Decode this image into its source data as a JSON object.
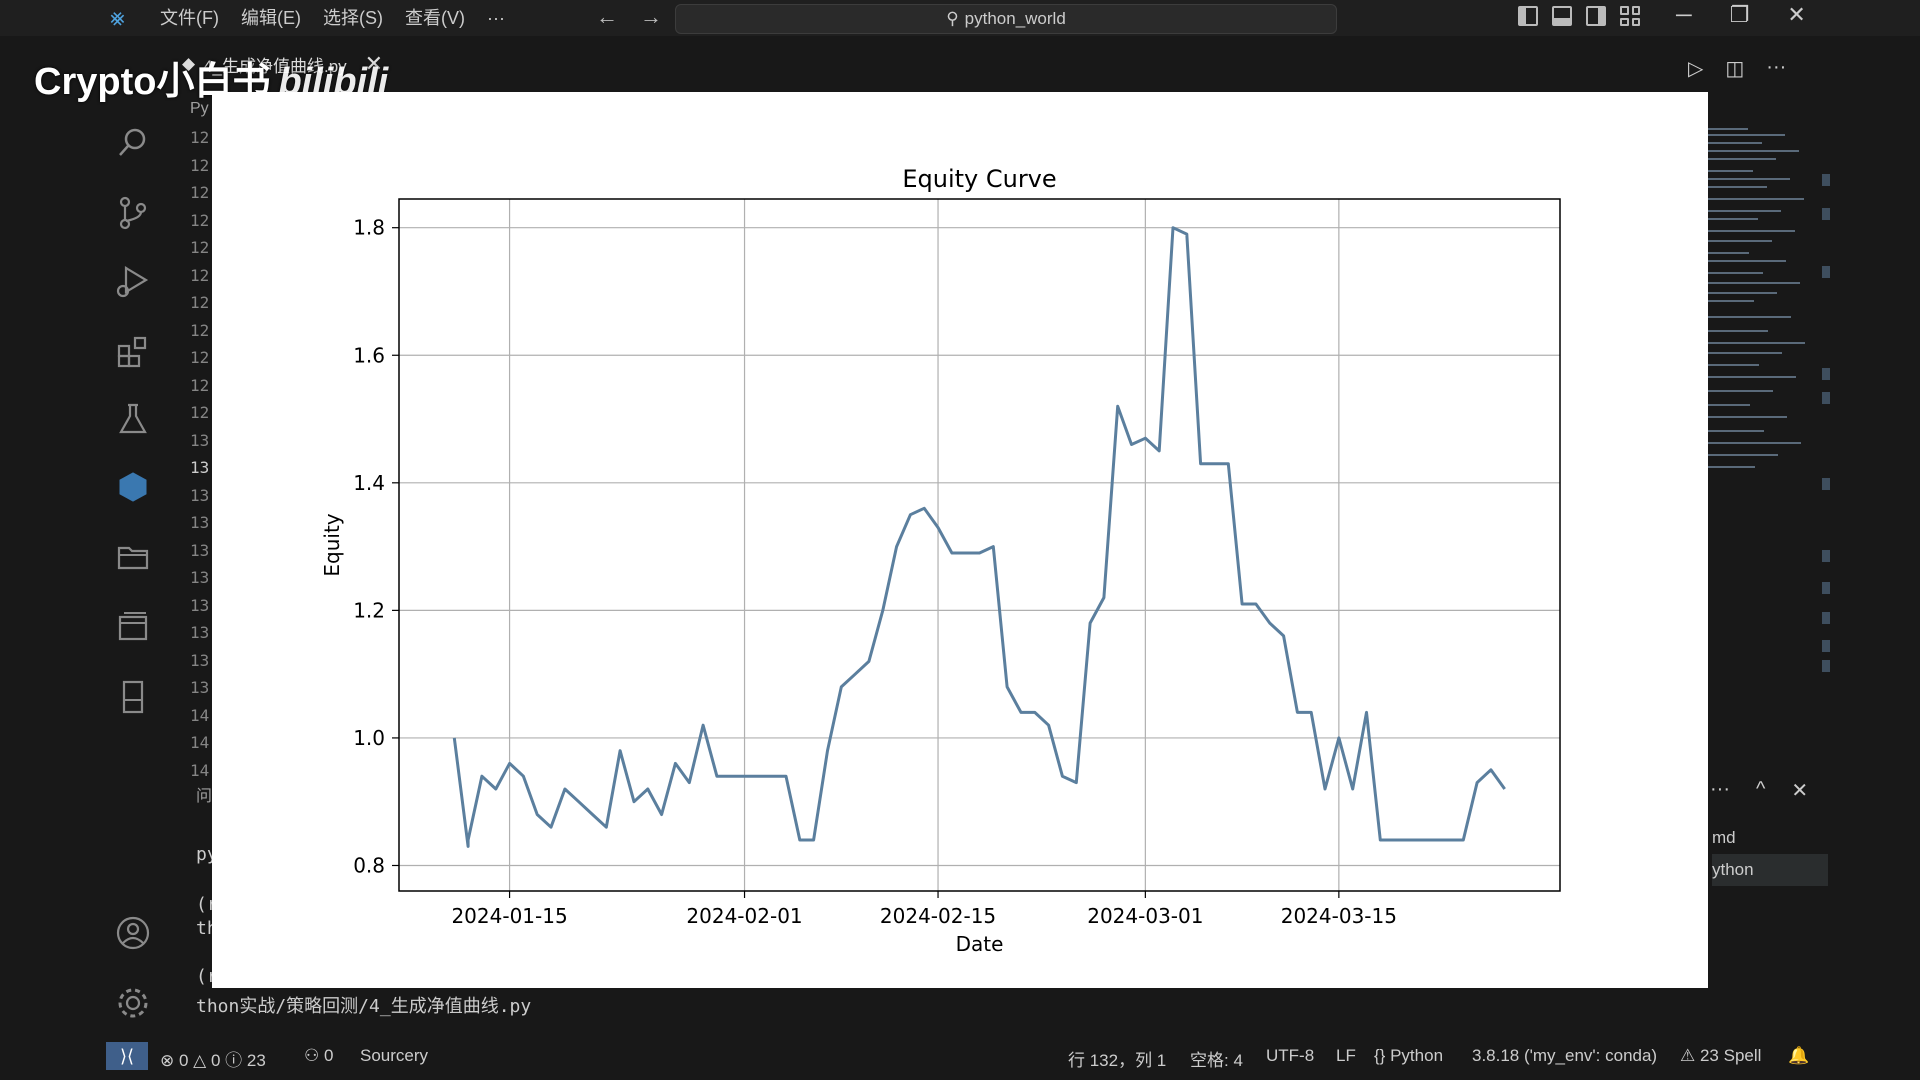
{
  "titlebar": {
    "menu": [
      "文件(F)",
      "编辑(E)",
      "选择(S)",
      "查看(V)",
      "···"
    ],
    "command_center": "python_world",
    "colors": {
      "background": "#1f1f1f",
      "accent": "#4fa3e0"
    }
  },
  "watermark": {
    "text": "Crypto小白书",
    "brand": "bilibili"
  },
  "editor": {
    "tab_label": "4_生成净值曲线.py",
    "breadcrumb": "Py",
    "line_numbers": [
      "12",
      "12",
      "12",
      "12",
      "12",
      "12",
      "12",
      "12",
      "12",
      "12",
      "12",
      "13",
      "13",
      "13",
      "13",
      "13",
      "13",
      "13",
      "13",
      "13",
      "13",
      "14",
      "14",
      "14"
    ]
  },
  "terminal": {
    "panel_label": "问",
    "lines": [
      "py",
      "(r",
      "th",
      "(r",
      "thon实战/策略回测/4_生成净值曲线.py"
    ],
    "right_tabs": [
      "md",
      "ython"
    ]
  },
  "statusbar": {
    "errors": "0",
    "warnings": "0",
    "info": "23",
    "ports": "0",
    "sourcery": "Sourcery",
    "cursor": "行 132，列 1",
    "spaces": "空格: 4",
    "encoding": "UTF-8",
    "eol": "LF",
    "language": "Python",
    "interpreter": "3.8.18 ('my_env': conda)",
    "spell": "23 Spell"
  },
  "chart_data": {
    "type": "line",
    "title": "Equity Curve",
    "xlabel": "Date",
    "ylabel": "Equity",
    "x_ticks": [
      "2024-01-15",
      "2024-02-01",
      "2024-02-15",
      "2024-03-01",
      "2024-03-15"
    ],
    "y_ticks": [
      "0.8",
      "1.0",
      "1.2",
      "1.4",
      "1.6",
      "1.8"
    ],
    "xlim": [
      "2024-01-07",
      "2024-03-31"
    ],
    "ylim": [
      0.76,
      1.845
    ],
    "grid": true,
    "series_color": "#5b7f9e",
    "series": [
      {
        "x": [
          "2024-01-11",
          "2024-01-11",
          "2024-01-12",
          "2024-01-12",
          "2024-01-13",
          "2024-01-14",
          "2024-01-15",
          "2024-01-16",
          "2024-01-17",
          "2024-01-18",
          "2024-01-19",
          "2024-01-20",
          "2024-01-21",
          "2024-01-22",
          "2024-01-23",
          "2024-01-24",
          "2024-01-25",
          "2024-01-26",
          "2024-01-27",
          "2024-01-28",
          "2024-01-29",
          "2024-01-30",
          "2024-01-31",
          "2024-02-01",
          "2024-02-02",
          "2024-02-03",
          "2024-02-04",
          "2024-02-05",
          "2024-02-06",
          "2024-02-07",
          "2024-02-08",
          "2024-02-09",
          "2024-02-10",
          "2024-02-11",
          "2024-02-12",
          "2024-02-13",
          "2024-02-14",
          "2024-02-15",
          "2024-02-16",
          "2024-02-17",
          "2024-02-18",
          "2024-02-19",
          "2024-02-20",
          "2024-02-21",
          "2024-02-22",
          "2024-02-23",
          "2024-02-24",
          "2024-02-25",
          "2024-02-26",
          "2024-02-27",
          "2024-02-28",
          "2024-02-29",
          "2024-03-01",
          "2024-03-02",
          "2024-03-03",
          "2024-03-04",
          "2024-03-05",
          "2024-03-06",
          "2024-03-07",
          "2024-03-08",
          "2024-03-09",
          "2024-03-10",
          "2024-03-11",
          "2024-03-12",
          "2024-03-13",
          "2024-03-14",
          "2024-03-15",
          "2024-03-16",
          "2024-03-17",
          "2024-03-18",
          "2024-03-19",
          "2024-03-20",
          "2024-03-21",
          "2024-03-22",
          "2024-03-23",
          "2024-03-24",
          "2024-03-25",
          "2024-03-26",
          "2024-03-27"
        ],
        "values": [
          1.0,
          1.0,
          0.83,
          0.84,
          0.94,
          0.92,
          0.96,
          0.94,
          0.88,
          0.86,
          0.92,
          0.9,
          0.88,
          0.86,
          0.98,
          0.9,
          0.92,
          0.88,
          0.96,
          0.93,
          1.02,
          0.94,
          0.94,
          0.94,
          0.94,
          0.94,
          0.94,
          0.84,
          0.84,
          0.98,
          1.08,
          1.1,
          1.12,
          1.2,
          1.3,
          1.35,
          1.36,
          1.33,
          1.29,
          1.29,
          1.29,
          1.3,
          1.08,
          1.04,
          1.04,
          1.02,
          0.94,
          0.93,
          1.18,
          1.22,
          1.52,
          1.46,
          1.47,
          1.45,
          1.8,
          1.79,
          1.43,
          1.43,
          1.43,
          1.21,
          1.21,
          1.18,
          1.16,
          1.04,
          1.04,
          0.92,
          1.0,
          0.92,
          1.04,
          0.84,
          0.84,
          0.84,
          0.84,
          0.84,
          0.84,
          0.84,
          0.93,
          0.95,
          0.92
        ]
      }
    ]
  }
}
